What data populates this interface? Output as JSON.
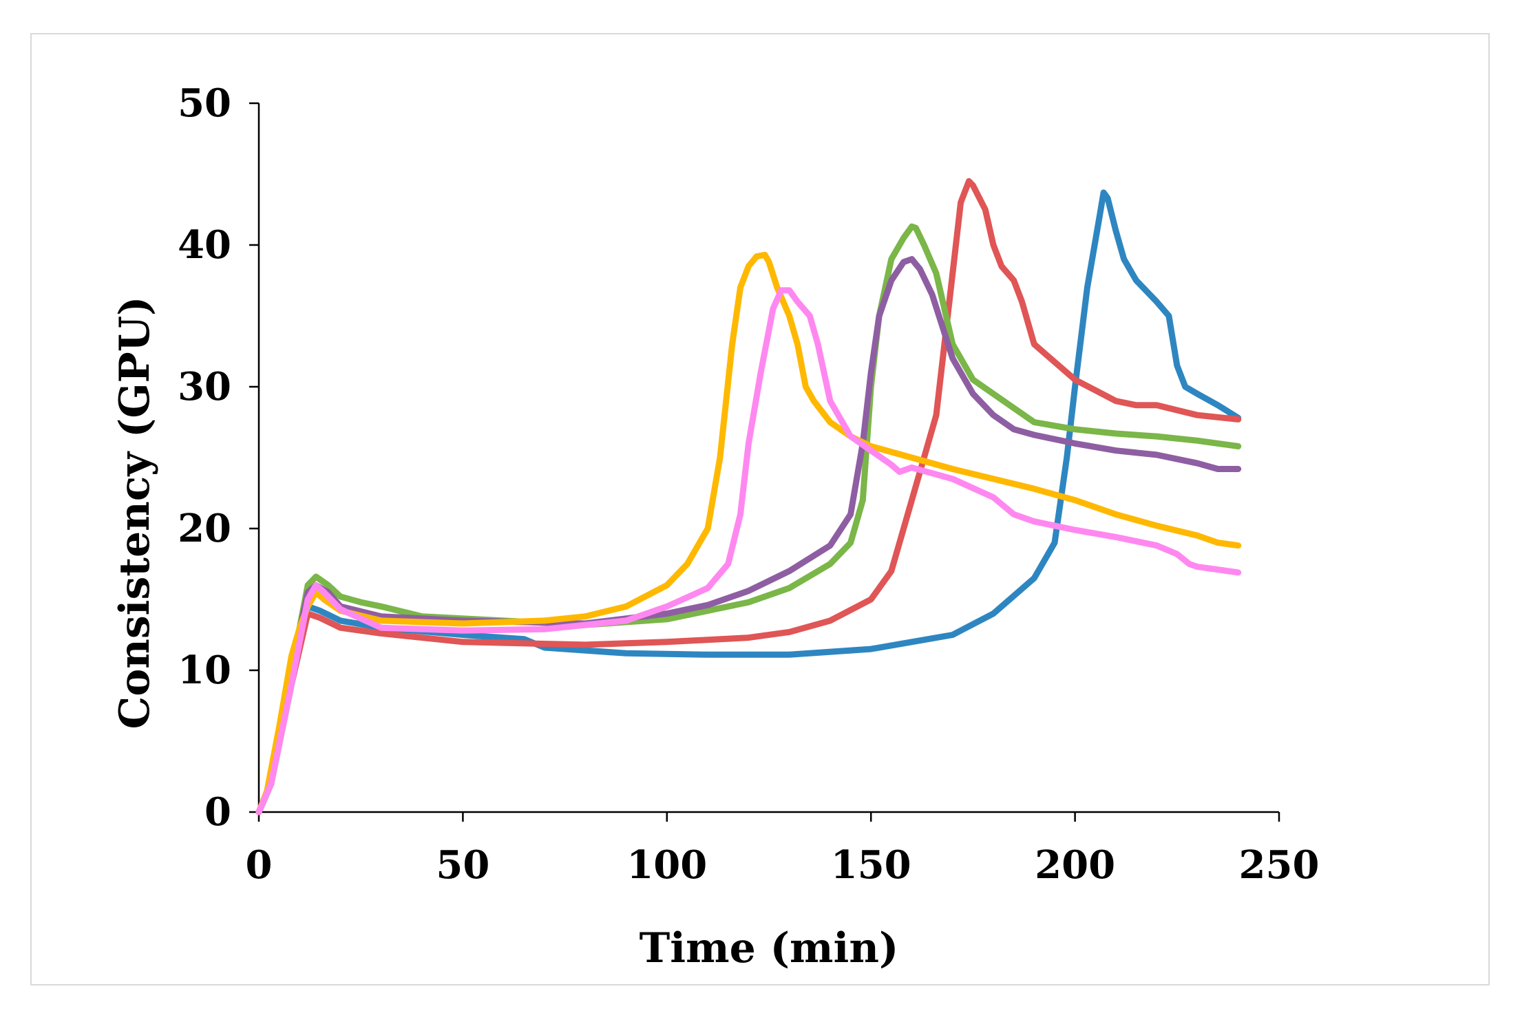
{
  "chart_data": {
    "type": "line",
    "title": "",
    "xlabel": "Time (min)",
    "ylabel": "Consistency (GPU)",
    "xlim": [
      0,
      250
    ],
    "ylim": [
      0,
      50
    ],
    "xticks": [
      0,
      50,
      100,
      150,
      200,
      250
    ],
    "yticks": [
      0,
      10,
      20,
      30,
      40,
      50
    ],
    "grid": false,
    "legend": "none",
    "series": [
      {
        "name": "blue",
        "color": "#2e86c1",
        "x": [
          0,
          3,
          8,
          12,
          15,
          20,
          30,
          50,
          65,
          70,
          90,
          110,
          130,
          150,
          160,
          170,
          180,
          190,
          195,
          198,
          200,
          203,
          206,
          207,
          208,
          210,
          212,
          215,
          220,
          223,
          225,
          227,
          230,
          235,
          240
        ],
        "y": [
          0,
          2,
          9,
          14.5,
          14.2,
          13.5,
          13,
          12.5,
          12.2,
          11.6,
          11.2,
          11.1,
          11.1,
          11.5,
          12,
          12.5,
          14,
          16.5,
          19,
          25,
          30,
          37,
          42,
          43.7,
          43.3,
          41,
          39,
          37.5,
          36,
          35,
          31.5,
          30,
          29.5,
          28.7,
          27.8
        ]
      },
      {
        "name": "red",
        "color": "#e05555",
        "x": [
          0,
          3,
          8,
          12,
          15,
          20,
          30,
          50,
          80,
          100,
          120,
          130,
          140,
          150,
          155,
          160,
          163,
          166,
          170,
          172,
          174,
          175,
          178,
          180,
          182,
          185,
          187,
          190,
          200,
          210,
          215,
          220,
          230,
          240
        ],
        "y": [
          0,
          2,
          9,
          14,
          13.7,
          13,
          12.6,
          12,
          11.8,
          12,
          12.3,
          12.7,
          13.5,
          15,
          17,
          22,
          25,
          28,
          38,
          43,
          44.5,
          44.2,
          42.5,
          40,
          38.5,
          37.5,
          36,
          33,
          30.5,
          29,
          28.7,
          28.7,
          28,
          27.7
        ]
      },
      {
        "name": "green",
        "color": "#7ab648",
        "x": [
          0,
          3,
          8,
          12,
          14,
          17,
          20,
          25,
          30,
          40,
          60,
          80,
          100,
          120,
          130,
          140,
          145,
          148,
          150,
          152,
          155,
          158,
          160,
          161,
          163,
          166,
          170,
          175,
          180,
          185,
          190,
          200,
          210,
          220,
          230,
          240
        ],
        "y": [
          0,
          2,
          10,
          16,
          16.6,
          16,
          15.2,
          14.8,
          14.5,
          13.8,
          13.5,
          13.2,
          13.6,
          14.8,
          15.8,
          17.5,
          19,
          22,
          30,
          35,
          39,
          40.5,
          41.3,
          41.2,
          40,
          38,
          33,
          30.5,
          29.5,
          28.5,
          27.5,
          27,
          26.7,
          26.5,
          26.2,
          25.8
        ]
      },
      {
        "name": "purple",
        "color": "#8e5ea2",
        "x": [
          0,
          3,
          8,
          12,
          14,
          17,
          20,
          30,
          50,
          80,
          100,
          110,
          120,
          130,
          140,
          145,
          148,
          150,
          152,
          155,
          158,
          160,
          162,
          165,
          170,
          175,
          180,
          185,
          190,
          200,
          210,
          220,
          230,
          235,
          240
        ],
        "y": [
          0,
          2,
          10,
          15.5,
          16,
          15.5,
          14.5,
          13.8,
          13.5,
          13.3,
          14,
          14.6,
          15.6,
          17,
          18.8,
          21,
          26,
          31,
          35,
          37.5,
          38.8,
          39,
          38.3,
          36.5,
          32,
          29.5,
          28,
          27,
          26.6,
          26,
          25.5,
          25.2,
          24.6,
          24.2,
          24.2
        ]
      },
      {
        "name": "yellow",
        "color": "#ffb800",
        "x": [
          0,
          2,
          5,
          8,
          10,
          12,
          14,
          16,
          20,
          30,
          50,
          70,
          80,
          90,
          100,
          105,
          110,
          113,
          116,
          118,
          120,
          122,
          124,
          125,
          127,
          130,
          132,
          134,
          136,
          140,
          145,
          150,
          160,
          170,
          180,
          190,
          200,
          210,
          220,
          230,
          235,
          240
        ],
        "y": [
          0,
          1.5,
          6,
          11,
          13,
          14.5,
          15.5,
          15,
          14.2,
          13.5,
          13.3,
          13.5,
          13.8,
          14.5,
          16,
          17.5,
          20,
          25,
          33,
          37,
          38.5,
          39.2,
          39.3,
          38.8,
          37,
          35,
          33,
          30,
          29,
          27.5,
          26.5,
          25.8,
          25,
          24.2,
          23.5,
          22.8,
          22,
          21,
          20.2,
          19.5,
          19,
          18.8
        ]
      },
      {
        "name": "pink",
        "color": "#ff88f0",
        "x": [
          0,
          3,
          8,
          12,
          14,
          16,
          20,
          30,
          50,
          70,
          90,
          100,
          110,
          115,
          118,
          120,
          123,
          126,
          128,
          130,
          132,
          135,
          137,
          140,
          145,
          150,
          155,
          157,
          160,
          170,
          180,
          185,
          190,
          200,
          210,
          220,
          225,
          228,
          230,
          235,
          240
        ],
        "y": [
          0,
          2,
          9,
          15,
          16,
          15.5,
          14.3,
          13,
          12.8,
          12.9,
          13.5,
          14.5,
          15.8,
          17.5,
          21,
          26,
          31,
          35.5,
          36.8,
          36.8,
          36,
          35,
          33,
          29,
          26.5,
          25.5,
          24.5,
          24,
          24.3,
          23.5,
          22.2,
          21,
          20.5,
          19.9,
          19.4,
          18.8,
          18.2,
          17.5,
          17.3,
          17.1,
          16.9
        ]
      }
    ]
  }
}
